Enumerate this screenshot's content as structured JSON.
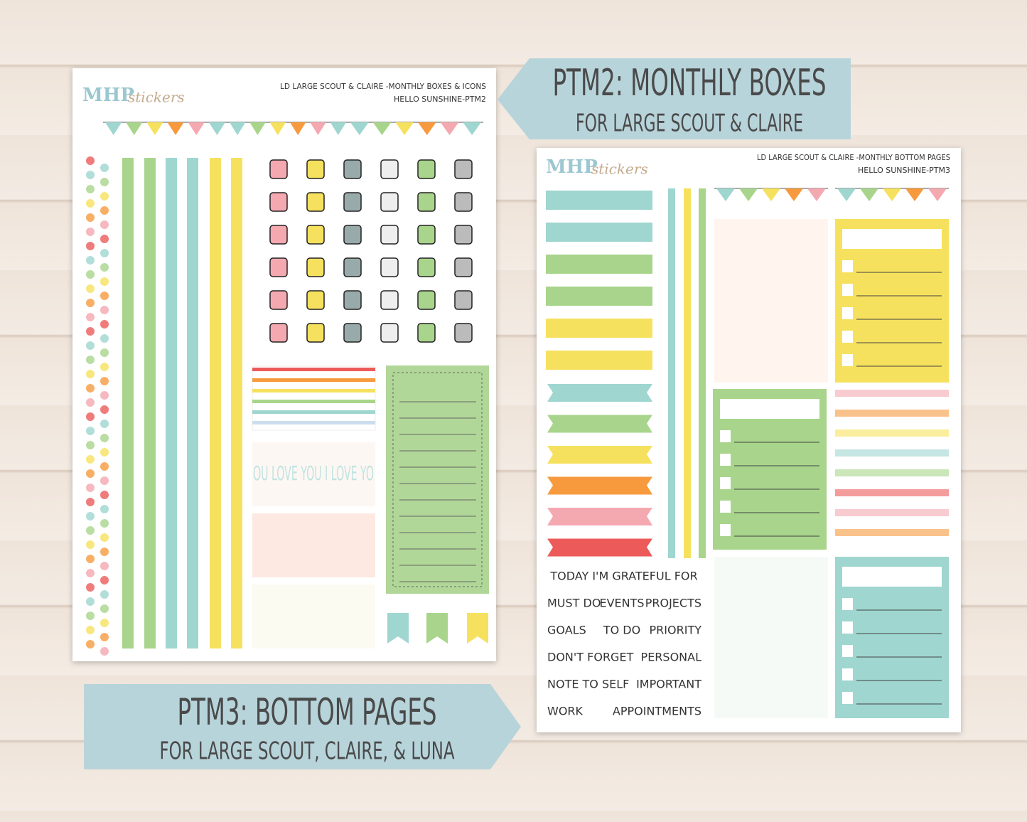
{
  "sheet_1": {
    "logo": {
      "brand": "MHP",
      "script": "stickers"
    },
    "header_line_1": "LD LARGE SCOUT & CLAIRE -MONTHLY BOXES & ICONS",
    "header_line_2": "HELLO SUNSHINE-PTM2",
    "decor_text": "OU LOVE YOU I LOVE YO"
  },
  "sheet_2": {
    "logo": {
      "brand": "MHP",
      "script": "stickers"
    },
    "header_line_1": "LD LARGE SCOUT & CLAIRE -MONTHLY BOTTOM PAGES",
    "header_line_2": "HELLO SUNSHINE-PTM3",
    "word_stickers": [
      [
        "TODAY I'M GRATEFUL FOR"
      ],
      [
        "MUST DO",
        "EVENTS",
        "PROJECTS"
      ],
      [
        "GOALS",
        "TO DO",
        "PRIORITY"
      ],
      [
        "DON'T FORGET",
        "PERSONAL"
      ],
      [
        "NOTE TO SELF",
        "IMPORTANT"
      ],
      [
        "WORK",
        "APPOINTMENTS"
      ]
    ]
  },
  "label_1": {
    "title": "PTM2: MONTHLY BOXES",
    "subtitle": "FOR LARGE SCOUT & CLAIRE"
  },
  "label_2": {
    "title": "PTM3: BOTTOM PAGES",
    "subtitle": "FOR LARGE SCOUT, CLAIRE, & LUNA"
  }
}
